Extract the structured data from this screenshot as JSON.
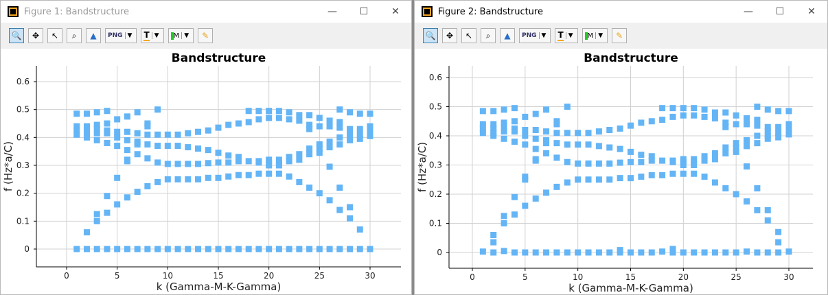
{
  "colors": {
    "marker": "#64b5f6",
    "grid": "#d0d0d0"
  },
  "toolbar": {
    "icons": [
      "zoom-icon",
      "pan-icon",
      "pointer-icon",
      "zoom-region-icon",
      "mountain-icon",
      "png-export-icon",
      "text-icon",
      "marker-icon",
      "pencil-icon"
    ],
    "png_label": "PNG",
    "text_label": "T",
    "marker_label": "M"
  },
  "windows": [
    {
      "title": "Figure 1: Bandstructure",
      "active": false
    },
    {
      "title": "Figure 2: Bandstructure",
      "active": true
    }
  ],
  "window_buttons": {
    "minimize": "—",
    "maximize": "☐",
    "close": "✕"
  },
  "chart_data": [
    {
      "type": "scatter",
      "title": "Bandstructure",
      "xlabel": "k (Gamma-M-K-Gamma)",
      "ylabel": "f (Hz*a/C)",
      "xlim": [
        -3,
        33
      ],
      "ylim": [
        -0.06,
        0.66
      ],
      "xticks": [
        "0",
        "5",
        "10",
        "15",
        "20",
        "25",
        "30"
      ],
      "yticks": [
        "0",
        "0.1",
        "0.2",
        "0.3",
        "0.4",
        "0.5",
        "0.6"
      ],
      "grid": true,
      "points_by_k": [
        [
          1,
          [
            0.485,
            0.44,
            0.425,
            0.41,
            0
          ]
        ],
        [
          2,
          [
            0.485,
            0.44,
            0.425,
            0.41,
            0.4,
            0.06,
            0
          ]
        ],
        [
          3,
          [
            0.49,
            0.445,
            0.43,
            0.415,
            0.39,
            0.125,
            0.1,
            0
          ]
        ],
        [
          4,
          [
            0.495,
            0.45,
            0.425,
            0.415,
            0.38,
            0.19,
            0.13,
            0
          ]
        ],
        [
          5,
          [
            0.465,
            0.42,
            0.4,
            0.37,
            0.255,
            0.16,
            0
          ]
        ],
        [
          6,
          [
            0.475,
            0.42,
            0.39,
            0.355,
            0.32,
            0.315,
            0.185,
            0
          ]
        ],
        [
          7,
          [
            0.49,
            0.415,
            0.385,
            0.375,
            0.34,
            0.205,
            0
          ]
        ],
        [
          8,
          [
            0.45,
            0.44,
            0.41,
            0.375,
            0.325,
            0.225,
            0
          ]
        ],
        [
          9,
          [
            0.5,
            0.41,
            0.37,
            0.31,
            0.24,
            0
          ]
        ],
        [
          10,
          [
            0.41,
            0.37,
            0.305,
            0.25,
            0
          ]
        ],
        [
          11,
          [
            0.41,
            0.37,
            0.305,
            0.25,
            0
          ]
        ],
        [
          12,
          [
            0.415,
            0.365,
            0.305,
            0.25,
            0
          ]
        ],
        [
          13,
          [
            0.42,
            0.36,
            0.305,
            0.25,
            0
          ]
        ],
        [
          14,
          [
            0.425,
            0.355,
            0.308,
            0.255,
            0
          ]
        ],
        [
          15,
          [
            0.435,
            0.345,
            0.31,
            0.255,
            0
          ]
        ],
        [
          16,
          [
            0.445,
            0.335,
            0.31,
            0.26,
            0
          ]
        ],
        [
          17,
          [
            0.45,
            0.33,
            0.315,
            0.265,
            0
          ]
        ],
        [
          18,
          [
            0.495,
            0.455,
            0.315,
            0.265,
            0
          ]
        ],
        [
          19,
          [
            0.495,
            0.465,
            0.315,
            0.31,
            0.27,
            0
          ]
        ],
        [
          20,
          [
            0.495,
            0.47,
            0.32,
            0.31,
            0.3,
            0.27,
            0
          ]
        ],
        [
          21,
          [
            0.495,
            0.47,
            0.32,
            0.31,
            0.3,
            0.27,
            0
          ]
        ],
        [
          22,
          [
            0.49,
            0.465,
            0.33,
            0.315,
            0.26,
            0
          ]
        ],
        [
          23,
          [
            0.48,
            0.46,
            0.34,
            0.32,
            0.24,
            0
          ]
        ],
        [
          24,
          [
            0.48,
            0.445,
            0.43,
            0.36,
            0.34,
            0.22,
            0
          ]
        ],
        [
          25,
          [
            0.47,
            0.44,
            0.375,
            0.36,
            0.345,
            0.2,
            0
          ]
        ],
        [
          26,
          [
            0.46,
            0.44,
            0.385,
            0.365,
            0.295,
            0.175,
            0
          ]
        ],
        [
          27,
          [
            0.5,
            0.455,
            0.435,
            0.4,
            0.375,
            0.22,
            0.14,
            0
          ]
        ],
        [
          28,
          [
            0.49,
            0.43,
            0.415,
            0.4,
            0.39,
            0.15,
            0.11,
            0
          ]
        ],
        [
          29,
          [
            0.485,
            0.43,
            0.41,
            0.395,
            0.07,
            0
          ]
        ],
        [
          30,
          [
            0.485,
            0.44,
            0.42,
            0.405,
            0
          ]
        ]
      ]
    },
    {
      "type": "scatter",
      "title": "Bandstructure",
      "xlabel": "k (Gamma-M-K-Gamma)",
      "ylabel": "f (Hz*a/C)",
      "xlim": [
        -3,
        33
      ],
      "ylim": [
        -0.06,
        0.66
      ],
      "xticks": [
        "0",
        "5",
        "10",
        "15",
        "20",
        "25",
        "30"
      ],
      "yticks": [
        "0",
        "0.1",
        "0.2",
        "0.3",
        "0.4",
        "0.5",
        "0.6"
      ],
      "grid": true,
      "points_by_k": [
        [
          1,
          [
            0.485,
            0.44,
            0.425,
            0.41,
            0.003
          ]
        ],
        [
          2,
          [
            0.485,
            0.44,
            0.425,
            0.41,
            0.4,
            0.06,
            0.035,
            0
          ]
        ],
        [
          3,
          [
            0.49,
            0.445,
            0.43,
            0.415,
            0.39,
            0.125,
            0.1,
            0.005
          ]
        ],
        [
          4,
          [
            0.495,
            0.45,
            0.425,
            0.415,
            0.38,
            0.19,
            0.13,
            0
          ]
        ],
        [
          5,
          [
            0.465,
            0.42,
            0.4,
            0.37,
            0.26,
            0.25,
            0.16,
            0
          ]
        ],
        [
          6,
          [
            0.475,
            0.42,
            0.39,
            0.355,
            0.32,
            0.315,
            0.185,
            0
          ]
        ],
        [
          7,
          [
            0.49,
            0.415,
            0.385,
            0.375,
            0.34,
            0.205,
            0
          ]
        ],
        [
          8,
          [
            0.45,
            0.44,
            0.41,
            0.375,
            0.325,
            0.225,
            0
          ]
        ],
        [
          9,
          [
            0.5,
            0.41,
            0.37,
            0.31,
            0.24,
            0
          ]
        ],
        [
          10,
          [
            0.41,
            0.37,
            0.305,
            0.25,
            0
          ]
        ],
        [
          11,
          [
            0.41,
            0.37,
            0.305,
            0.25,
            0
          ]
        ],
        [
          12,
          [
            0.415,
            0.365,
            0.305,
            0.25,
            0
          ]
        ],
        [
          13,
          [
            0.42,
            0.36,
            0.305,
            0.25,
            0
          ]
        ],
        [
          14,
          [
            0.425,
            0.355,
            0.308,
            0.255,
            0.008,
            0
          ]
        ],
        [
          15,
          [
            0.435,
            0.345,
            0.31,
            0.255,
            0
          ]
        ],
        [
          16,
          [
            0.445,
            0.335,
            0.31,
            0.26,
            0
          ]
        ],
        [
          17,
          [
            0.45,
            0.33,
            0.315,
            0.265,
            0
          ]
        ],
        [
          18,
          [
            0.495,
            0.455,
            0.315,
            0.265,
            0.003
          ]
        ],
        [
          19,
          [
            0.495,
            0.465,
            0.315,
            0.31,
            0.27,
            0.012,
            0
          ]
        ],
        [
          20,
          [
            0.495,
            0.47,
            0.32,
            0.31,
            0.3,
            0.27,
            0
          ]
        ],
        [
          21,
          [
            0.495,
            0.47,
            0.32,
            0.31,
            0.3,
            0.27,
            0
          ]
        ],
        [
          22,
          [
            0.49,
            0.465,
            0.33,
            0.315,
            0.26,
            0
          ]
        ],
        [
          23,
          [
            0.48,
            0.46,
            0.34,
            0.32,
            0.24,
            0
          ]
        ],
        [
          24,
          [
            0.48,
            0.445,
            0.43,
            0.36,
            0.34,
            0.22,
            0
          ]
        ],
        [
          25,
          [
            0.47,
            0.44,
            0.375,
            0.36,
            0.345,
            0.2,
            0
          ]
        ],
        [
          26,
          [
            0.46,
            0.44,
            0.385,
            0.365,
            0.295,
            0.175,
            0.003
          ]
        ],
        [
          27,
          [
            0.5,
            0.455,
            0.435,
            0.4,
            0.375,
            0.22,
            0.145,
            0
          ]
        ],
        [
          28,
          [
            0.49,
            0.43,
            0.415,
            0.4,
            0.39,
            0.145,
            0.11,
            0
          ]
        ],
        [
          29,
          [
            0.485,
            0.43,
            0.41,
            0.395,
            0.07,
            0.035,
            0
          ]
        ],
        [
          30,
          [
            0.485,
            0.44,
            0.42,
            0.405,
            0.003
          ]
        ]
      ]
    }
  ]
}
